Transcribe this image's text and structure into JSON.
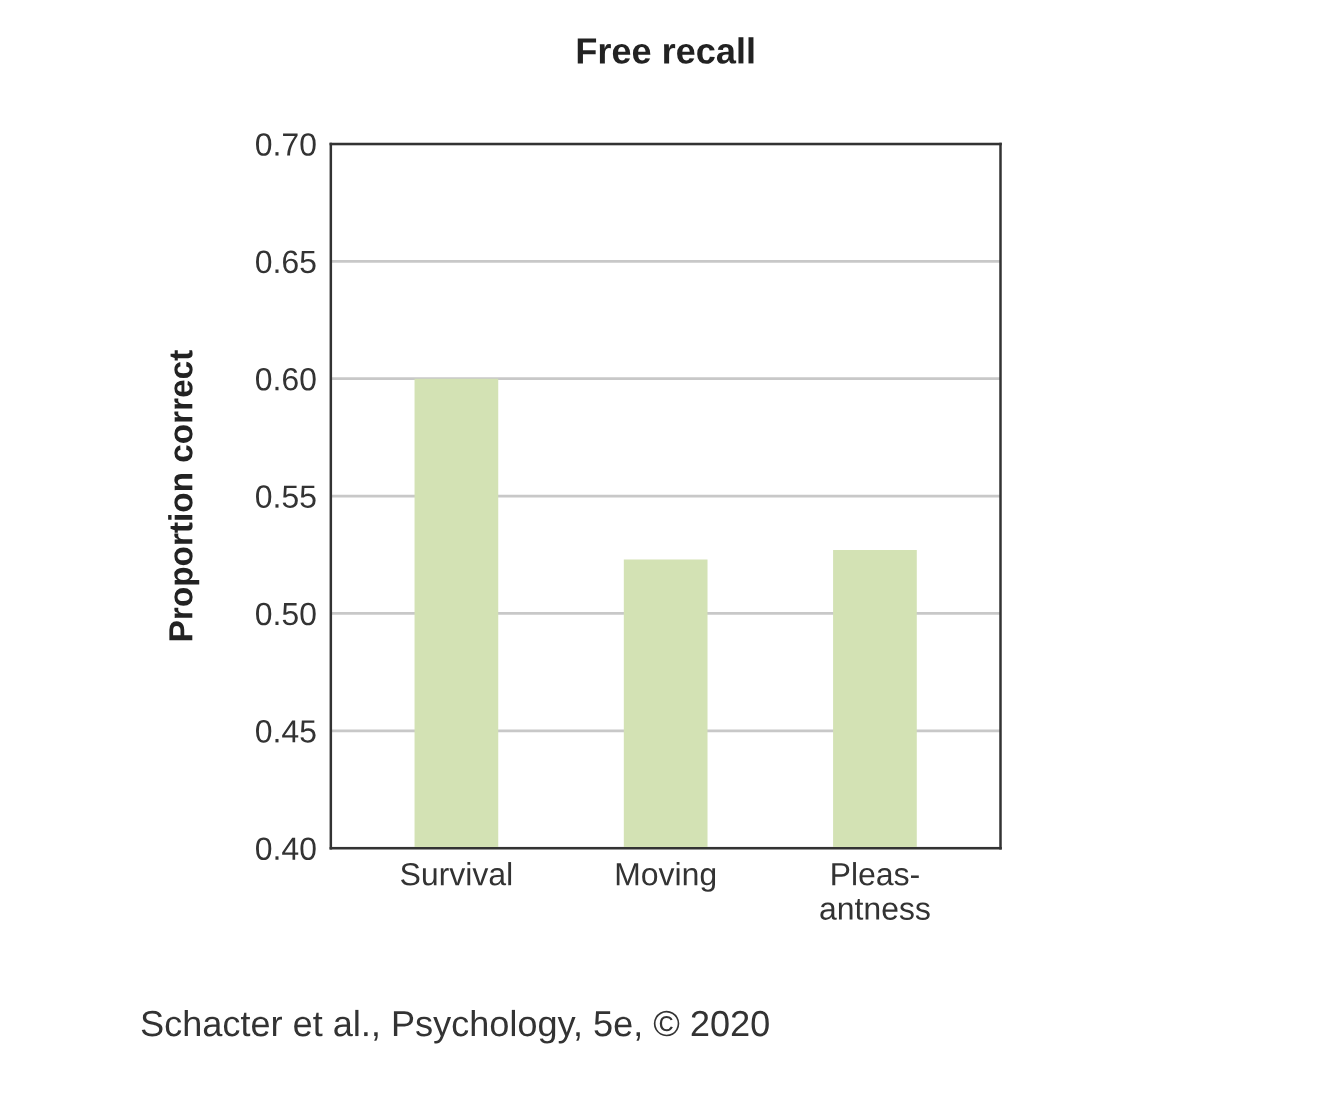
{
  "chart_data": {
    "type": "bar",
    "title": "Free recall",
    "ylabel": "Proportion correct",
    "categories": [
      "Survival",
      "Moving",
      "Pleas-\nantness"
    ],
    "values": [
      0.6,
      0.523,
      0.527
    ],
    "color": "#d3e2b4",
    "ylim": [
      0.4,
      0.7
    ],
    "yticks": [
      {
        "value": 0.4,
        "label": "0.40"
      },
      {
        "value": 0.45,
        "label": "0.45"
      },
      {
        "value": 0.5,
        "label": "0.50"
      },
      {
        "value": 0.55,
        "label": "0.55"
      },
      {
        "value": 0.6,
        "label": "0.60"
      },
      {
        "value": 0.65,
        "label": "0.65"
      },
      {
        "value": 0.7,
        "label": "0.70"
      }
    ],
    "grid": "y",
    "legend": false,
    "annotations": [
      "Schacter et al., Psychology, 5e, © 2020"
    ]
  }
}
